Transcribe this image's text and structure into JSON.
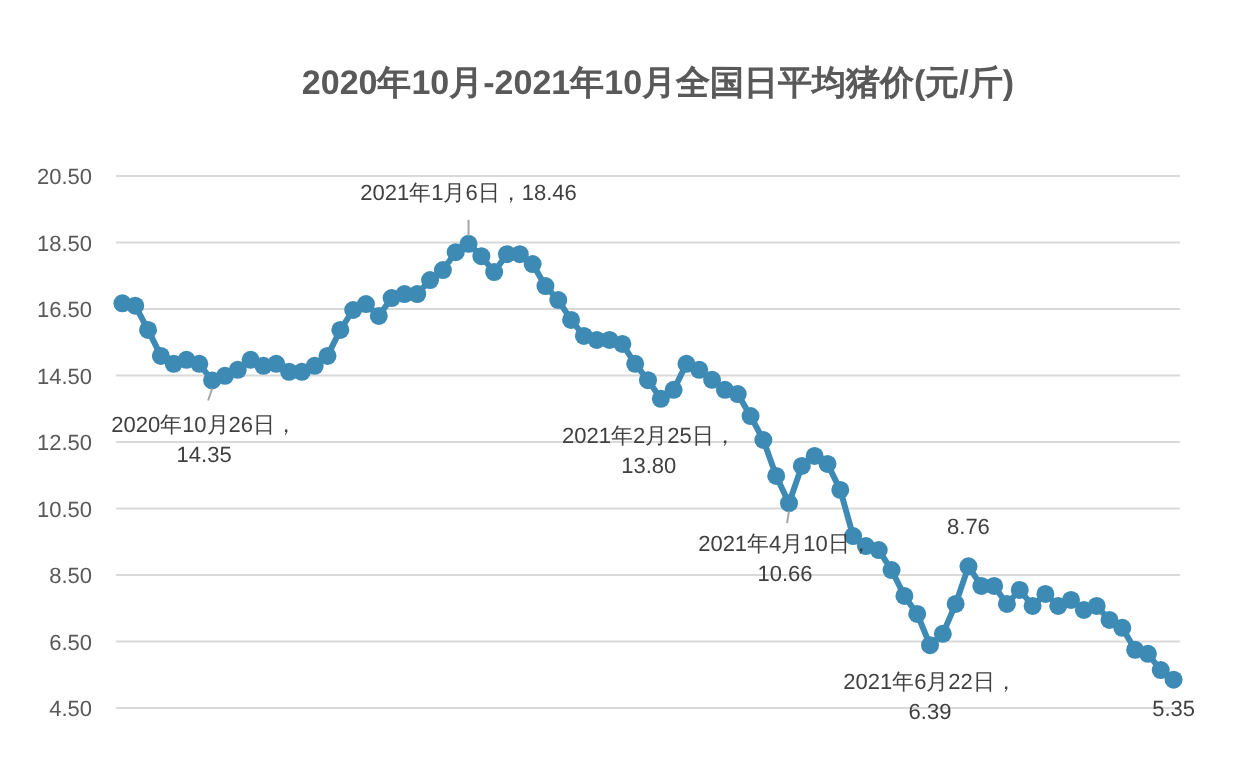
{
  "chart_data": {
    "type": "line",
    "title": "2020年10月-2021年10月全国日平均猪价(元/斤)",
    "categories": [
      null,
      null,
      null,
      null,
      null,
      null,
      null,
      null,
      null,
      null,
      null,
      null,
      null,
      null,
      null,
      null,
      null,
      null,
      null,
      null,
      null,
      null,
      null,
      null,
      null,
      null,
      null,
      null,
      null,
      null,
      null,
      null,
      null,
      null,
      null,
      null,
      null,
      null,
      null,
      null,
      null,
      null,
      null,
      null,
      null,
      null,
      null,
      null,
      null,
      null,
      null,
      null,
      null,
      null,
      null,
      null,
      null,
      null,
      null,
      null,
      null,
      null,
      null,
      null,
      null,
      null,
      null,
      null,
      null,
      null,
      null,
      null,
      null,
      null,
      null,
      null,
      null,
      null,
      null,
      null,
      null,
      null,
      null
    ],
    "series": [
      {
        "color": "#3d8ab5",
        "values": [
          16.67,
          16.6,
          15.87,
          15.09,
          14.85,
          14.97,
          14.85,
          14.35,
          14.49,
          14.67,
          14.97,
          14.79,
          14.85,
          14.61,
          14.61,
          14.79,
          15.09,
          15.87,
          16.47,
          16.65,
          16.29,
          16.83,
          16.95,
          16.95,
          17.37,
          17.67,
          18.21,
          18.46,
          18.09,
          17.61,
          18.15,
          18.15,
          17.85,
          17.19,
          16.77,
          16.17,
          15.69,
          15.57,
          15.57,
          15.45,
          14.85,
          14.36,
          13.8,
          14.07,
          14.85,
          14.67,
          14.37,
          14.07,
          13.94,
          13.28,
          12.56,
          11.48,
          10.66,
          11.78,
          12.08,
          11.84,
          11.06,
          9.67,
          9.37,
          9.25,
          8.65,
          7.87,
          7.33,
          6.39,
          6.73,
          7.63,
          8.76,
          8.17,
          8.17,
          7.63,
          8.05,
          7.57,
          7.93,
          7.57,
          7.75,
          7.45,
          7.57,
          7.15,
          6.91,
          6.25,
          6.13,
          5.64,
          5.35
        ]
      }
    ],
    "ylim": [
      4.5,
      20.5
    ],
    "yticks": [
      {
        "value": 4.5,
        "label": "4.50"
      },
      {
        "value": 6.5,
        "label": "6.50"
      },
      {
        "value": 8.5,
        "label": "8.50"
      },
      {
        "value": 10.5,
        "label": "10.50"
      },
      {
        "value": 12.5,
        "label": "12.50"
      },
      {
        "value": 14.5,
        "label": "14.50"
      },
      {
        "value": 16.5,
        "label": "16.50"
      },
      {
        "value": 18.5,
        "label": "18.50"
      },
      {
        "value": 20.5,
        "label": "20.50"
      }
    ],
    "grid": "y",
    "marker": "circle",
    "line_style": "solid",
    "annotations": [
      {
        "text": "2020年10月26日，\n14.35",
        "y": 14.35
      },
      {
        "text": "2021年1月6日，18.46",
        "y": 18.46
      },
      {
        "text": "2021年2月25日，\n13.80",
        "y": 13.8
      },
      {
        "text": "2021年4月10日，\n10.66",
        "y": 10.66
      },
      {
        "text": "2021年6月22日，\n6.39",
        "y": 6.39
      },
      {
        "text": "8.76",
        "y": 8.76
      },
      {
        "text": "5.35",
        "y": 5.35
      }
    ]
  }
}
